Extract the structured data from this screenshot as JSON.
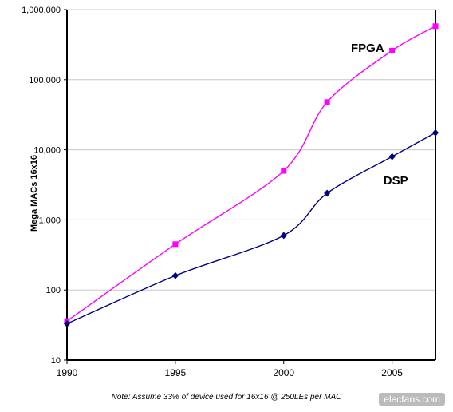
{
  "chart_data": {
    "type": "line",
    "ylabel": "Mega MACs 16x16",
    "xlabel": "",
    "y_scale": "log",
    "ylim": [
      10,
      1000000
    ],
    "xlim": [
      1990,
      2007
    ],
    "x_ticks": [
      1990,
      1995,
      2000,
      2005
    ],
    "y_ticks": [
      {
        "value": 10,
        "label": "10"
      },
      {
        "value": 100,
        "label": "100"
      },
      {
        "value": 1000,
        "label": "1,000"
      },
      {
        "value": 10000,
        "label": "10,000"
      },
      {
        "value": 100000,
        "label": "100,000"
      },
      {
        "value": 1000000,
        "label": "1,000,000"
      }
    ],
    "grid": "horizontal",
    "series": [
      {
        "name": "FPGA",
        "color": "#ff00ff",
        "marker": "square",
        "x": [
          1990,
          1995,
          2000,
          2002,
          2005,
          2007
        ],
        "values": [
          36,
          450,
          5000,
          48000,
          260000,
          580000
        ]
      },
      {
        "name": "DSP",
        "color": "#000080",
        "marker": "diamond",
        "x": [
          1990,
          1995,
          2000,
          2002,
          2005,
          2007
        ],
        "values": [
          33,
          160,
          600,
          2400,
          8000,
          17500
        ]
      }
    ],
    "note": "Note: Assume 33% of device used for 16x16 @ 250LEs per MAC"
  },
  "watermark": "elecfans.com"
}
